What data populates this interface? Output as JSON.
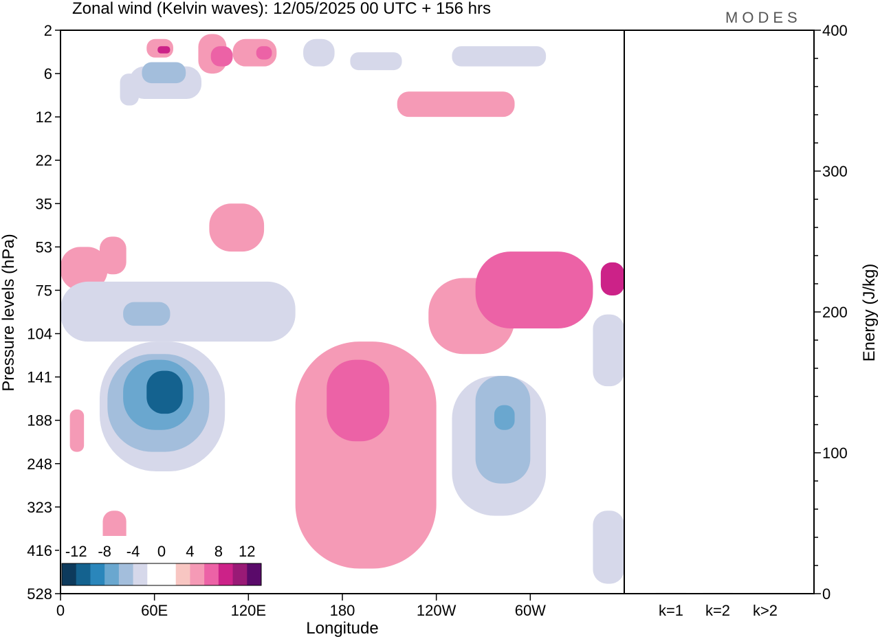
{
  "title": "Zonal wind (Kelvin waves):  12/05/2025  00 UTC  + 156 hrs",
  "brand": "MODES",
  "chart_data": [
    {
      "type": "heatmap",
      "title": "Zonal wind (Kelvin waves):  12/05/2025  00 UTC  + 156 hrs",
      "xlabel": "Longitude",
      "ylabel": "Pressure levels (hPa)",
      "x_ticks": [
        "0",
        "60E",
        "120E",
        "180",
        "120W",
        "60W"
      ],
      "x_tick_degrees": [
        0,
        60,
        120,
        180,
        240,
        300
      ],
      "xlim": [
        0,
        360
      ],
      "y_ticks": [
        2,
        6,
        12,
        22,
        35,
        53,
        75,
        104,
        141,
        188,
        248,
        323,
        416,
        528
      ],
      "y_ticks_labels": [
        "2",
        "6",
        "12",
        "22",
        "35",
        "53",
        "75",
        "104",
        "141",
        "188",
        "248",
        "323",
        "416",
        "528"
      ],
      "colorbar": {
        "labels": [
          "-12",
          "-8",
          "-4",
          "0",
          "4",
          "8",
          "12"
        ],
        "colors": [
          "#0d3a5c",
          "#14628f",
          "#2a86bb",
          "#6aa7cf",
          "#a3bedc",
          "#d6d8ea",
          "#ffffff",
          "#ffffff",
          "#f8c6c2",
          "#f59ab6",
          "#ec62a6",
          "#cc2288",
          "#991a76",
          "#5a0a6a"
        ]
      },
      "regions": [
        {
          "lon": [
            38,
            50
          ],
          "level": [
            6,
            10
          ],
          "value": -4
        },
        {
          "lon": [
            44,
            90
          ],
          "level": [
            5,
            9
          ],
          "value": -4
        },
        {
          "lon": [
            52,
            80
          ],
          "level": [
            4.5,
            7
          ],
          "value": -6
        },
        {
          "lon": [
            55,
            72
          ],
          "level": [
            2.5,
            4
          ],
          "value": 4
        },
        {
          "lon": [
            62,
            70
          ],
          "level": [
            3,
            3.6
          ],
          "value": 8
        },
        {
          "lon": [
            88,
            106
          ],
          "level": [
            2.2,
            6
          ],
          "value": 4
        },
        {
          "lon": [
            96,
            110
          ],
          "level": [
            3,
            5
          ],
          "value": 6
        },
        {
          "lon": [
            110,
            138
          ],
          "level": [
            2.5,
            5
          ],
          "value": 4
        },
        {
          "lon": [
            125,
            135
          ],
          "level": [
            3,
            4.2
          ],
          "value": 6
        },
        {
          "lon": [
            155,
            175
          ],
          "level": [
            2.5,
            5
          ],
          "value": -4
        },
        {
          "lon": [
            185,
            218
          ],
          "level": [
            3.5,
            5.5
          ],
          "value": -4
        },
        {
          "lon": [
            215,
            290
          ],
          "level": [
            8,
            12
          ],
          "value": 4
        },
        {
          "lon": [
            250,
            310
          ],
          "level": [
            3,
            5
          ],
          "value": -4
        },
        {
          "lon": [
            0,
            30
          ],
          "level": [
            53,
            75
          ],
          "value": 4
        },
        {
          "lon": [
            25,
            42
          ],
          "level": [
            48,
            66
          ],
          "value": 4
        },
        {
          "lon": [
            95,
            130
          ],
          "level": [
            35,
            55
          ],
          "value": 4
        },
        {
          "lon": [
            0,
            150
          ],
          "level": [
            70,
            110
          ],
          "value": -4
        },
        {
          "lon": [
            40,
            70
          ],
          "level": [
            82,
            98
          ],
          "value": -6
        },
        {
          "lon": [
            25,
            105
          ],
          "level": [
            110,
            260
          ],
          "value": -4
        },
        {
          "lon": [
            30,
            95
          ],
          "level": [
            120,
            230
          ],
          "value": -6
        },
        {
          "lon": [
            40,
            85
          ],
          "level": [
            125,
            200
          ],
          "value": -8
        },
        {
          "lon": [
            55,
            78
          ],
          "level": [
            135,
            180
          ],
          "value": -12
        },
        {
          "lon": [
            150,
            240
          ],
          "level": [
            110,
            460
          ],
          "value": 4
        },
        {
          "lon": [
            170,
            210
          ],
          "level": [
            125,
            215
          ],
          "value": 6
        },
        {
          "lon": [
            235,
            290
          ],
          "level": [
            68,
            120
          ],
          "value": 4
        },
        {
          "lon": [
            265,
            340
          ],
          "level": [
            55,
            100
          ],
          "value": 6
        },
        {
          "lon": [
            345,
            360
          ],
          "level": [
            60,
            78
          ],
          "value": 8
        },
        {
          "lon": [
            250,
            310
          ],
          "level": [
            140,
            340
          ],
          "value": -4
        },
        {
          "lon": [
            265,
            300
          ],
          "level": [
            140,
            280
          ],
          "value": -6
        },
        {
          "lon": [
            277,
            290
          ],
          "level": [
            170,
            200
          ],
          "value": -8
        },
        {
          "lon": [
            340,
            360
          ],
          "level": [
            90,
            150
          ],
          "value": -4
        },
        {
          "lon": [
            340,
            360
          ],
          "level": [
            330,
            500
          ],
          "value": -4
        },
        {
          "lon": [
            27,
            42
          ],
          "level": [
            330,
            460
          ],
          "value": 4
        },
        {
          "lon": [
            6,
            15
          ],
          "level": [
            175,
            230
          ],
          "value": 4
        }
      ]
    },
    {
      "type": "bar",
      "categories": [
        "k=1",
        "k=2",
        "k>2"
      ],
      "values": [
        0.5,
        0.5,
        0.5
      ],
      "ylabel": "Energy (J/kg)",
      "ylim": [
        0,
        400
      ],
      "y_ticks": [
        0,
        100,
        200,
        300,
        400
      ]
    }
  ]
}
